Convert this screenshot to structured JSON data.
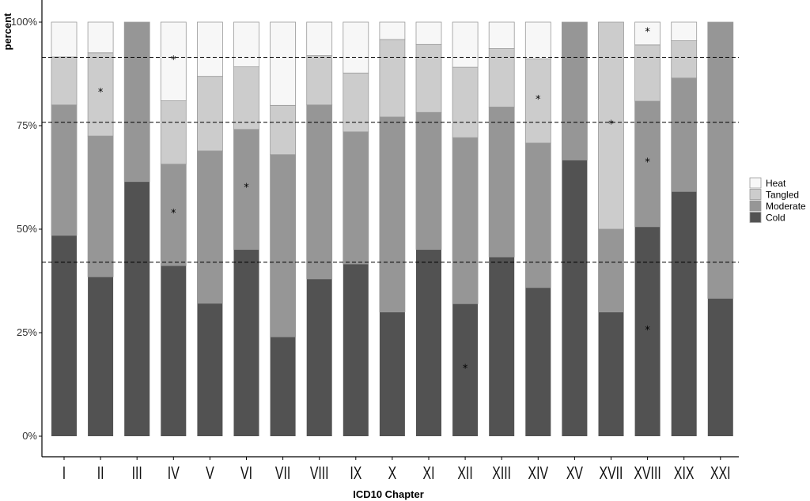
{
  "chart_data": {
    "type": "bar",
    "stacked": true,
    "xlabel": "ICD10 Chapter",
    "ylabel": "percent",
    "ylim": [
      0,
      100
    ],
    "yticks": [
      0,
      25,
      50,
      75,
      100
    ],
    "ytick_labels": [
      "0%",
      "25%",
      "50%",
      "75%",
      "100%"
    ],
    "categories": [
      "I",
      "II",
      "III",
      "IV",
      "V",
      "VI",
      "VII",
      "VIII",
      "IX",
      "X",
      "XI",
      "XII",
      "XIII",
      "XIV",
      "XV",
      "XVII",
      "XVIII",
      "XIX",
      "XXI"
    ],
    "series": [
      {
        "name": "Cold",
        "color": "#525252",
        "values": [
          48.5,
          38.5,
          61.5,
          41.2,
          32.1,
          45.1,
          24.0,
          38.0,
          41.6,
          30.0,
          45.1,
          32.0,
          43.3,
          35.9,
          66.7,
          30.0,
          50.6,
          59.1,
          33.3
        ]
      },
      {
        "name": "Moderate",
        "color": "#969696",
        "values": [
          31.5,
          34.0,
          38.5,
          24.5,
          36.8,
          29.0,
          44.0,
          42.0,
          31.9,
          47.1,
          33.1,
          40.1,
          36.2,
          34.9,
          33.3,
          20.0,
          30.3,
          27.4,
          66.7
        ]
      },
      {
        "name": "Tangled",
        "color": "#cccccc",
        "values": [
          11.6,
          20.1,
          0,
          15.3,
          18.0,
          15.1,
          11.9,
          11.9,
          14.2,
          18.7,
          16.4,
          17.0,
          14.1,
          20.3,
          0,
          50.0,
          13.6,
          9.0,
          0
        ]
      },
      {
        "name": "Heat",
        "color": "#f7f7f7",
        "values": [
          8.4,
          7.4,
          0,
          19.0,
          13.1,
          10.8,
          20.1,
          8.1,
          12.3,
          4.2,
          5.4,
          10.9,
          6.4,
          8.9,
          0,
          0,
          5.5,
          4.5,
          0
        ]
      }
    ],
    "reference_lines": [
      42,
      75.8,
      91.5
    ],
    "reference_line_style": "dashed",
    "annotations": [
      {
        "category": "II",
        "y": 83.2,
        "text": "*"
      },
      {
        "category": "IV",
        "y": 91.0,
        "text": "*"
      },
      {
        "category": "IV",
        "y": 54.0,
        "text": "*"
      },
      {
        "category": "VI",
        "y": 60.2,
        "text": "*"
      },
      {
        "category": "XII",
        "y": 16.5,
        "text": "*"
      },
      {
        "category": "XIV",
        "y": 81.5,
        "text": "*"
      },
      {
        "category": "XVII",
        "y": 75.5,
        "text": "*"
      },
      {
        "category": "XVIII",
        "y": 97.8,
        "text": "*"
      },
      {
        "category": "XVIII",
        "y": 66.3,
        "text": "*"
      },
      {
        "category": "XVIII",
        "y": 25.8,
        "text": "*"
      }
    ],
    "legend": {
      "placement": "right",
      "order": [
        "Heat",
        "Tangled",
        "Moderate",
        "Cold"
      ]
    },
    "grid": false
  }
}
